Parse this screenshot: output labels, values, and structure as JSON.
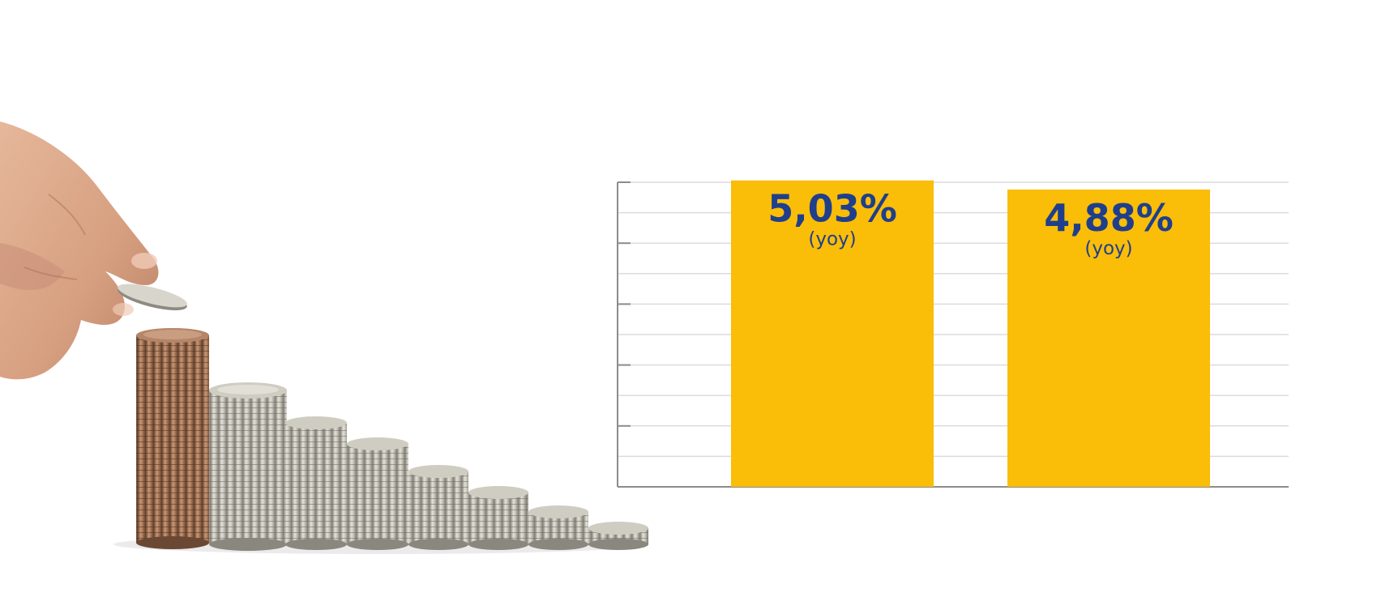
{
  "chart_data": {
    "type": "bar",
    "categories": [
      "",
      ""
    ],
    "values": [
      5.03,
      4.88
    ],
    "value_labels": [
      "5,03%",
      "4,88%"
    ],
    "value_sublabels": [
      "(yoy)",
      "(yoy)"
    ],
    "title": "",
    "xlabel": "",
    "ylabel": "",
    "ylim": [
      0,
      5
    ],
    "grid": true,
    "legend": "none",
    "bar_color": "#fabd08",
    "label_color": "#1f3f8c",
    "grid_color": "#dcdcdc",
    "axis_color": "#8c8c8c"
  },
  "illustration": {
    "description_icon": "hand-stacking-coins-icon"
  }
}
